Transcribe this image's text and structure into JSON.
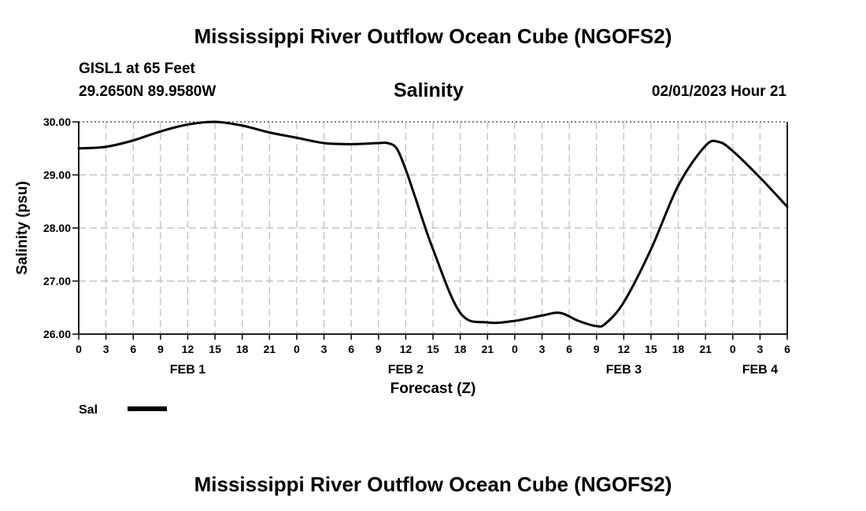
{
  "page": {
    "title_top": "Mississippi River Outflow Ocean Cube (NGOFS2)",
    "title_bottom": "Mississippi River Outflow Ocean Cube (NGOFS2)",
    "station": "GISL1 at 65 Feet",
    "coords": "29.2650N  89.9580W",
    "variable": "Salinity",
    "datetime": "02/01/2023 Hour 21"
  },
  "chart_data": {
    "type": "line",
    "title": "Salinity",
    "ylabel": "Salinity (psu)",
    "xlabel": "Forecast (Z)",
    "ylim": [
      26.0,
      30.0
    ],
    "xlim": [
      0,
      78
    ],
    "y_ticks": [
      "26.00",
      "27.00",
      "28.00",
      "29.00",
      "30.00"
    ],
    "x_tick_labels": [
      "0",
      "3",
      "6",
      "9",
      "12",
      "15",
      "18",
      "21",
      "0",
      "3",
      "6",
      "9",
      "12",
      "15",
      "18",
      "21",
      "0",
      "3",
      "6",
      "9",
      "12",
      "15",
      "18",
      "21",
      "0",
      "3",
      "6"
    ],
    "date_labels": [
      {
        "label": "FEB 1",
        "hour": 12
      },
      {
        "label": "FEB 2",
        "hour": 36
      },
      {
        "label": "FEB 3",
        "hour": 60
      },
      {
        "label": "FEB 4",
        "hour": 75
      }
    ],
    "grid": true,
    "series": [
      {
        "name": "Sal",
        "x": [
          0,
          3,
          6,
          9,
          12,
          15,
          18,
          21,
          24,
          27,
          30,
          33,
          34,
          35,
          36,
          37,
          39,
          42,
          45,
          48,
          51,
          53,
          55,
          57,
          58,
          60,
          63,
          66,
          69,
          70.5,
          72,
          75,
          78
        ],
        "values": [
          29.5,
          29.53,
          29.65,
          29.82,
          29.95,
          30.0,
          29.93,
          29.8,
          29.7,
          29.6,
          29.58,
          29.6,
          29.6,
          29.5,
          29.1,
          28.6,
          27.6,
          26.4,
          26.22,
          26.25,
          26.35,
          26.4,
          26.25,
          26.15,
          26.2,
          26.6,
          27.6,
          28.8,
          29.55,
          29.62,
          29.45,
          28.95,
          28.4
        ]
      }
    ]
  },
  "legend": {
    "label": "Sal",
    "color": "#000000"
  }
}
